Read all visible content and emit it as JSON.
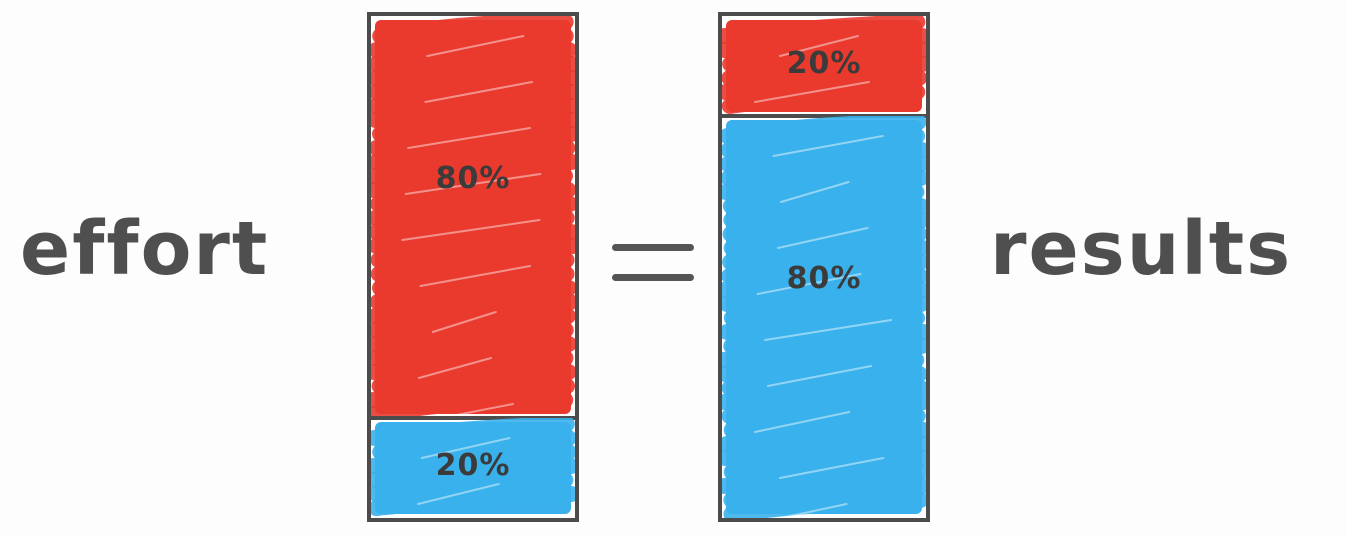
{
  "labels": {
    "left": "effort",
    "right": "results"
  },
  "colors": {
    "red": "#ea3a2e",
    "blue": "#3ab1ec"
  },
  "columns": [
    {
      "id": "effort",
      "segments": [
        {
          "label": "80%",
          "share": 0.8,
          "color": "red"
        },
        {
          "label": "20%",
          "share": 0.2,
          "color": "blue"
        }
      ]
    },
    {
      "id": "results",
      "segments": [
        {
          "label": "20%",
          "share": 0.2,
          "color": "red"
        },
        {
          "label": "80%",
          "share": 0.8,
          "color": "blue"
        }
      ]
    }
  ]
}
